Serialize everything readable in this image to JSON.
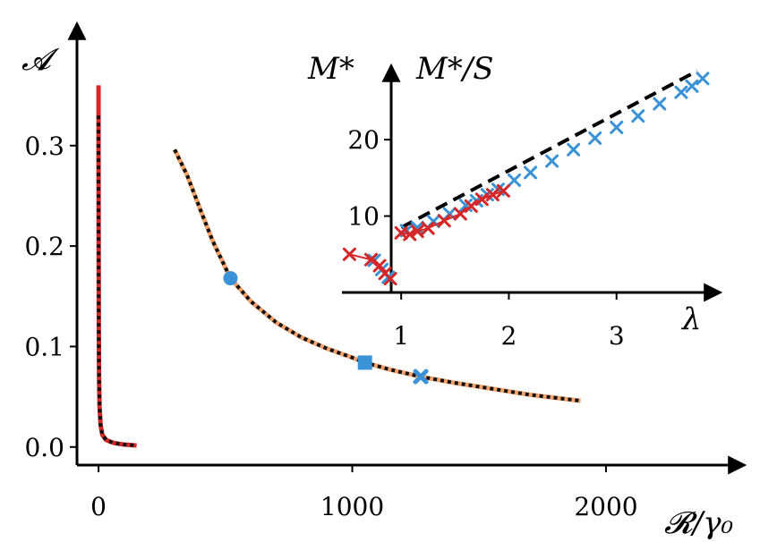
{
  "chart_data": [
    {
      "type": "line",
      "title": "",
      "xlabel": "𝓡/γ₀",
      "ylabel": "𝓐",
      "xlim": [
        -85,
        2540
      ],
      "ylim": [
        -0.018,
        0.42
      ],
      "xticks": [
        0,
        1000,
        2000
      ],
      "yticks": [
        0.0,
        0.1,
        0.2,
        0.3
      ],
      "xtick_labels": [
        "0",
        "1000",
        "2000"
      ],
      "ytick_labels": [
        "0.0",
        "0.1",
        "0.2",
        "0.3"
      ],
      "grid": false,
      "series": [
        {
          "style": "solid",
          "color": "#d62728",
          "points": [
            [
              0,
              0.36
            ],
            [
              0,
              0.3
            ],
            [
              0.5,
              0.2
            ],
            [
              1,
              0.12
            ],
            [
              2,
              0.07
            ],
            [
              4,
              0.04
            ],
            [
              8,
              0.022
            ],
            [
              15,
              0.012
            ],
            [
              30,
              0.007
            ],
            [
              60,
              0.004
            ],
            [
              100,
              0.0025
            ],
            [
              150,
              0.0015
            ]
          ]
        },
        {
          "style": "dotted",
          "color": "#111111",
          "points": [
            [
              0,
              0.33
            ],
            [
              0,
              0.28
            ],
            [
              0.5,
              0.19
            ],
            [
              1,
              0.12
            ],
            [
              2,
              0.07
            ],
            [
              4,
              0.04
            ],
            [
              8,
              0.022
            ],
            [
              15,
              0.012
            ],
            [
              30,
              0.007
            ],
            [
              60,
              0.004
            ],
            [
              100,
              0.0025
            ],
            [
              150,
              0.0015
            ]
          ]
        },
        {
          "style": "solid",
          "color": "#f4a26b",
          "points": [
            [
              300,
              0.296
            ],
            [
              350,
              0.27
            ],
            [
              400,
              0.237
            ],
            [
              450,
              0.205
            ],
            [
              520,
              0.168
            ],
            [
              600,
              0.145
            ],
            [
              700,
              0.124
            ],
            [
              800,
              0.109
            ],
            [
              900,
              0.098
            ],
            [
              1000,
              0.089
            ],
            [
              1050,
              0.084
            ],
            [
              1150,
              0.077
            ],
            [
              1270,
              0.07
            ],
            [
              1400,
              0.064
            ],
            [
              1550,
              0.058
            ],
            [
              1700,
              0.052
            ],
            [
              1800,
              0.049
            ],
            [
              1900,
              0.046
            ]
          ]
        },
        {
          "style": "dotted",
          "color": "#111111",
          "points": [
            [
              300,
              0.296
            ],
            [
              350,
              0.27
            ],
            [
              400,
              0.237
            ],
            [
              450,
              0.205
            ],
            [
              520,
              0.168
            ],
            [
              600,
              0.145
            ],
            [
              700,
              0.124
            ],
            [
              800,
              0.109
            ],
            [
              900,
              0.098
            ],
            [
              1000,
              0.089
            ],
            [
              1050,
              0.084
            ],
            [
              1150,
              0.077
            ],
            [
              1270,
              0.07
            ],
            [
              1400,
              0.064
            ],
            [
              1550,
              0.058
            ],
            [
              1700,
              0.052
            ],
            [
              1800,
              0.049
            ],
            [
              1900,
              0.046
            ]
          ]
        }
      ],
      "markers": [
        {
          "shape": "circle",
          "x": 520,
          "y": 0.168,
          "color": "#3a93d6"
        },
        {
          "shape": "square",
          "x": 1050,
          "y": 0.084,
          "color": "#3a93d6"
        },
        {
          "shape": "x",
          "x": 1270,
          "y": 0.07,
          "color": "#3a93d6"
        }
      ]
    },
    {
      "type": "scatter",
      "title": "",
      "xlabel": "λ",
      "ylabel": "M*",
      "ylabel2": "M*/S",
      "xlim": [
        0.45,
        3.95
      ],
      "ylim": [
        0,
        29.5
      ],
      "xticks": [
        1,
        2,
        3
      ],
      "yticks": [
        10,
        20
      ],
      "xtick_labels": [
        "1",
        "2",
        "3"
      ],
      "ytick_labels": [
        "10",
        "20"
      ],
      "grid": false,
      "fit_line": {
        "style": "dashed",
        "color": "#000000",
        "points": [
          [
            1.0,
            8.5
          ],
          [
            3.75,
            29.0
          ]
        ]
      },
      "series": [
        {
          "color": "#3a93d6",
          "points": [
            [
              0.75,
              4.2
            ],
            [
              0.82,
              3.0
            ],
            [
              0.88,
              2.0
            ],
            [
              1.05,
              8.1
            ],
            [
              1.15,
              8.5
            ],
            [
              1.3,
              9.3
            ],
            [
              1.45,
              10.3
            ],
            [
              1.6,
              11.4
            ],
            [
              1.7,
              12.0
            ],
            [
              1.8,
              12.8
            ],
            [
              1.9,
              13.5
            ],
            [
              2.05,
              14.7
            ],
            [
              2.2,
              15.7
            ],
            [
              2.4,
              17.2
            ],
            [
              2.6,
              18.7
            ],
            [
              2.8,
              20.2
            ],
            [
              3.0,
              21.6
            ],
            [
              3.2,
              23.1
            ],
            [
              3.4,
              24.7
            ],
            [
              3.6,
              26.2
            ],
            [
              3.7,
              27.0
            ],
            [
              3.8,
              28.0
            ]
          ]
        },
        {
          "color": "#d62728",
          "connected": true,
          "points": [
            [
              0.52,
              5.0
            ],
            [
              0.72,
              4.3
            ],
            [
              0.8,
              3.5
            ],
            [
              0.85,
              2.5
            ],
            [
              0.9,
              1.8
            ],
            [
              1.0,
              7.8
            ],
            [
              1.08,
              7.6
            ],
            [
              1.15,
              8.0
            ],
            [
              1.25,
              8.4
            ],
            [
              1.4,
              9.4
            ],
            [
              1.55,
              10.3
            ],
            [
              1.65,
              11.3
            ],
            [
              1.75,
              12.2
            ],
            [
              1.85,
              12.8
            ],
            [
              1.95,
              13.3
            ]
          ]
        }
      ]
    }
  ]
}
